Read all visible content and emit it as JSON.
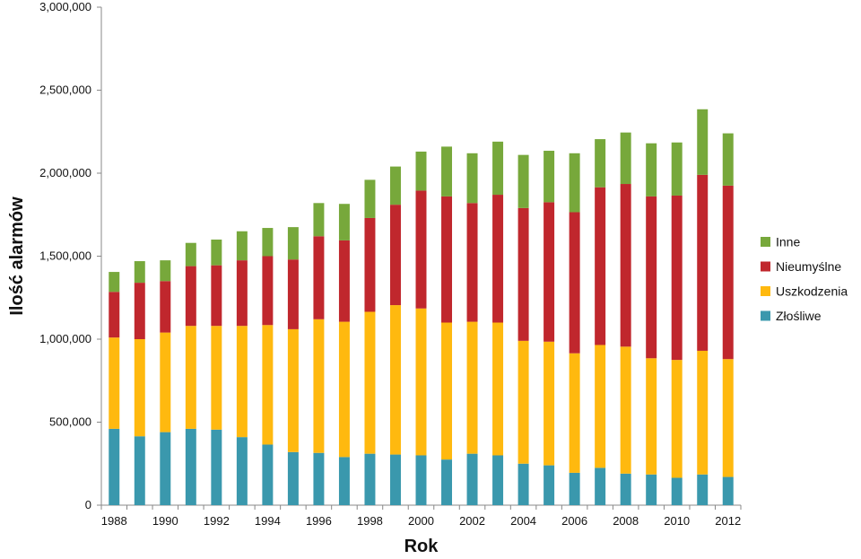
{
  "chart_data": {
    "type": "bar",
    "stacked": true,
    "xlabel": "Rok",
    "ylabel": "Ilość alarmów",
    "ylim": [
      0,
      3000000
    ],
    "yticks": [
      0,
      500000,
      1000000,
      1500000,
      2000000,
      2500000,
      3000000
    ],
    "ytick_labels": [
      "0",
      "500,000",
      "1,000,000",
      "1,500,000",
      "2,000,000",
      "2,500,000",
      "3,000,000"
    ],
    "grid": false,
    "legend_position": "right",
    "categories": [
      "1988",
      "1989",
      "1990",
      "1991",
      "1992",
      "1993",
      "1994",
      "1995",
      "1996",
      "1997",
      "1998",
      "1999",
      "2000",
      "2001",
      "2002",
      "2003",
      "2004",
      "2005",
      "2006",
      "2007",
      "2008",
      "2009",
      "2010",
      "2011",
      "2012"
    ],
    "xtick_labels": [
      "1988",
      "1990",
      "1992",
      "1994",
      "1996",
      "1998",
      "2000",
      "2002",
      "2004",
      "2006",
      "2008",
      "2010",
      "2012"
    ],
    "series": [
      {
        "name": "Złośliwe",
        "color": "#3a98ad",
        "values": [
          460000,
          415000,
          440000,
          460000,
          455000,
          410000,
          365000,
          320000,
          315000,
          290000,
          310000,
          305000,
          300000,
          275000,
          310000,
          300000,
          250000,
          240000,
          195000,
          225000,
          190000,
          185000,
          165000,
          185000,
          170000
        ]
      },
      {
        "name": "Uszkodzenia",
        "color": "#ffb90f",
        "values": [
          550000,
          585000,
          600000,
          620000,
          625000,
          670000,
          720000,
          740000,
          805000,
          815000,
          855000,
          900000,
          885000,
          825000,
          795000,
          800000,
          740000,
          745000,
          720000,
          740000,
          765000,
          700000,
          710000,
          745000,
          710000
        ]
      },
      {
        "name": "Nieumyślne",
        "color": "#c0272d",
        "values": [
          275000,
          340000,
          310000,
          360000,
          365000,
          395000,
          415000,
          420000,
          500000,
          490000,
          565000,
          605000,
          710000,
          760000,
          715000,
          770000,
          800000,
          840000,
          850000,
          950000,
          980000,
          975000,
          990000,
          1060000,
          1045000
        ]
      },
      {
        "name": "Inne",
        "color": "#77a83b",
        "values": [
          120000,
          130000,
          125000,
          140000,
          155000,
          175000,
          170000,
          195000,
          200000,
          220000,
          230000,
          230000,
          235000,
          300000,
          300000,
          320000,
          320000,
          310000,
          355000,
          290000,
          310000,
          320000,
          320000,
          395000,
          315000
        ]
      }
    ]
  }
}
